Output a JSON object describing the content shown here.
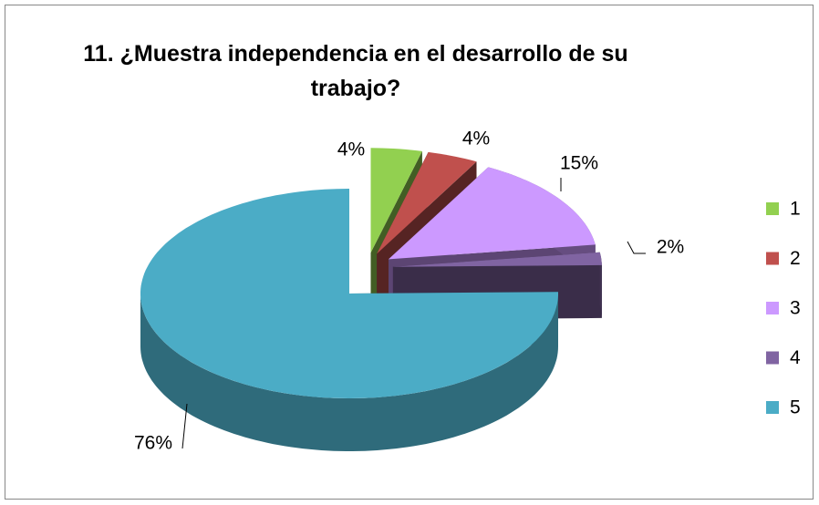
{
  "chart_data": {
    "type": "pie3d",
    "title": "11. ¿Muestra independencia en el desarrollo de su trabajo?",
    "categories": [
      "1",
      "2",
      "3",
      "4",
      "5"
    ],
    "values": [
      4,
      4,
      15,
      2,
      76
    ],
    "value_labels": [
      "4%",
      "4%",
      "15%",
      "2%",
      "76%"
    ],
    "colors": [
      "#92d050",
      "#c0504d",
      "#cc99ff",
      "#8064a2",
      "#4bacc6"
    ],
    "legend": "right"
  }
}
